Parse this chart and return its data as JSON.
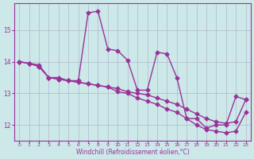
{
  "line1_x": [
    0,
    1,
    2,
    3,
    4,
    5,
    6,
    7,
    8,
    9,
    10,
    11,
    12,
    13,
    14,
    15,
    16,
    17,
    18,
    19,
    20,
    21,
    22,
    23
  ],
  "line1_y": [
    14.0,
    13.95,
    13.9,
    13.5,
    13.5,
    13.4,
    13.4,
    15.55,
    15.6,
    14.4,
    14.35,
    14.05,
    13.1,
    13.1,
    14.3,
    14.25,
    13.5,
    12.2,
    12.2,
    11.9,
    12.0,
    12.0,
    12.9,
    12.8
  ],
  "line2_x": [
    0,
    1,
    2,
    3,
    4,
    5,
    6,
    7,
    8,
    9,
    10,
    11,
    12,
    13,
    14,
    15,
    16,
    17,
    18,
    19,
    20,
    21,
    22,
    23
  ],
  "line2_y": [
    14.0,
    13.95,
    13.85,
    13.5,
    13.45,
    13.4,
    13.35,
    13.3,
    13.25,
    13.2,
    13.15,
    13.05,
    13.0,
    12.95,
    12.85,
    12.75,
    12.65,
    12.5,
    12.35,
    12.2,
    12.1,
    12.05,
    12.1,
    12.8
  ],
  "line3_x": [
    0,
    1,
    2,
    3,
    4,
    5,
    6,
    7,
    8,
    9,
    10,
    11,
    12,
    13,
    14,
    15,
    16,
    17,
    18,
    19,
    20,
    21,
    22,
    23
  ],
  "line3_y": [
    14.0,
    13.95,
    13.85,
    13.5,
    13.45,
    13.4,
    13.35,
    13.3,
    13.25,
    13.2,
    13.05,
    13.0,
    12.85,
    12.75,
    12.65,
    12.5,
    12.4,
    12.2,
    12.0,
    11.85,
    11.8,
    11.75,
    11.8,
    12.4
  ],
  "color": "#993399",
  "bg_color": "#cce8e8",
  "grid_color": "#b0b8cc",
  "xlabel": "Windchill (Refroidissement éolien,°C)",
  "xlim": [
    -0.5,
    23.5
  ],
  "ylim": [
    11.5,
    15.85
  ],
  "yticks": [
    12,
    13,
    14,
    15
  ],
  "xticks": [
    0,
    1,
    2,
    3,
    4,
    5,
    6,
    7,
    8,
    9,
    10,
    11,
    12,
    13,
    14,
    15,
    16,
    17,
    18,
    19,
    20,
    21,
    22,
    23
  ],
  "marker": "D",
  "markersize": 2.5,
  "linewidth": 1.0
}
